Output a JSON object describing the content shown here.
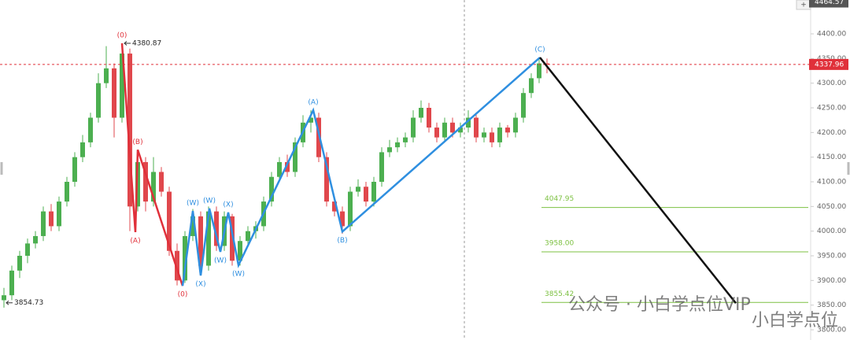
{
  "chart_data": {
    "type": "candlestick",
    "up_color": "#4caf50",
    "down_color": "#e0474c",
    "xlim": [
      -0.5,
      102.5
    ],
    "ylim": [
      3779.3,
      4468.6
    ],
    "yticks": [
      {
        "value": 4400,
        "label": "4400.00"
      },
      {
        "value": 4350,
        "label": "4350.00"
      },
      {
        "value": 4300,
        "label": "4300.00"
      },
      {
        "value": 4250,
        "label": "4250.00"
      },
      {
        "value": 4200,
        "label": "4200.00"
      },
      {
        "value": 4150,
        "label": "4150.00"
      },
      {
        "value": 4100,
        "label": "4100.00"
      },
      {
        "value": 4050,
        "label": "4050.00"
      },
      {
        "value": 4000,
        "label": "4000.00"
      },
      {
        "value": 3950,
        "label": "3950.00"
      },
      {
        "value": 3900,
        "label": "3900.00"
      },
      {
        "value": 3850,
        "label": "3850.00"
      },
      {
        "value": 3800,
        "label": "3800.00"
      }
    ],
    "candles": [
      [
        3860,
        3885,
        3845,
        3870
      ],
      [
        3870,
        3930,
        3860,
        3920
      ],
      [
        3920,
        3960,
        3905,
        3950
      ],
      [
        3950,
        3985,
        3935,
        3975
      ],
      [
        3975,
        4000,
        3965,
        3990
      ],
      [
        3990,
        4050,
        3980,
        4040
      ],
      [
        4040,
        4055,
        4000,
        4010
      ],
      [
        4010,
        4070,
        4000,
        4060
      ],
      [
        4060,
        4110,
        4050,
        4100
      ],
      [
        4100,
        4160,
        4090,
        4150
      ],
      [
        4150,
        4195,
        4140,
        4180
      ],
      [
        4180,
        4240,
        4170,
        4230
      ],
      [
        4230,
        4320,
        4220,
        4300
      ],
      [
        4300,
        4375,
        4290,
        4330
      ],
      [
        4330,
        4340,
        4190,
        4230
      ],
      [
        4230,
        4375,
        4220,
        4360
      ],
      [
        4360,
        4370,
        4000,
        4050
      ],
      [
        4050,
        4160,
        4040,
        4140
      ],
      [
        4140,
        4150,
        4040,
        4060
      ],
      [
        4060,
        4150,
        4050,
        4120
      ],
      [
        4120,
        4130,
        4070,
        4080
      ],
      [
        4080,
        4090,
        3950,
        3960
      ],
      [
        3960,
        3975,
        3890,
        3900
      ],
      [
        3900,
        4000,
        3895,
        3990
      ],
      [
        3990,
        4045,
        3980,
        4030
      ],
      [
        4030,
        4040,
        3915,
        3930
      ],
      [
        3930,
        4050,
        3920,
        4040
      ],
      [
        4040,
        4050,
        3960,
        3970
      ],
      [
        3970,
        4040,
        3960,
        4030
      ],
      [
        4030,
        4035,
        3930,
        3940
      ],
      [
        3940,
        3990,
        3930,
        3980
      ],
      [
        3980,
        4010,
        3970,
        4000
      ],
      [
        4000,
        4020,
        3985,
        4010
      ],
      [
        4010,
        4070,
        4000,
        4060
      ],
      [
        4060,
        4120,
        4050,
        4110
      ],
      [
        4110,
        4150,
        4100,
        4140
      ],
      [
        4140,
        4155,
        4110,
        4120
      ],
      [
        4120,
        4190,
        4110,
        4180
      ],
      [
        4180,
        4235,
        4170,
        4220
      ],
      [
        4220,
        4245,
        4200,
        4230
      ],
      [
        4230,
        4240,
        4140,
        4150
      ],
      [
        4150,
        4160,
        4050,
        4060
      ],
      [
        4060,
        4070,
        4030,
        4040
      ],
      [
        4040,
        4050,
        3995,
        4010
      ],
      [
        4010,
        4090,
        4000,
        4080
      ],
      [
        4080,
        4105,
        4070,
        4090
      ],
      [
        4090,
        4100,
        4050,
        4060
      ],
      [
        4060,
        4110,
        4050,
        4100
      ],
      [
        4100,
        4170,
        4090,
        4160
      ],
      [
        4160,
        4185,
        4150,
        4170
      ],
      [
        4170,
        4190,
        4160,
        4180
      ],
      [
        4180,
        4200,
        4170,
        4190
      ],
      [
        4190,
        4245,
        4180,
        4230
      ],
      [
        4230,
        4265,
        4220,
        4250
      ],
      [
        4250,
        4260,
        4200,
        4210
      ],
      [
        4210,
        4220,
        4180,
        4190
      ],
      [
        4190,
        4230,
        4180,
        4220
      ],
      [
        4220,
        4230,
        4190,
        4200
      ],
      [
        4200,
        4220,
        4190,
        4210
      ],
      [
        4210,
        4245,
        4200,
        4230
      ],
      [
        4230,
        4240,
        4180,
        4190
      ],
      [
        4190,
        4210,
        4180,
        4200
      ],
      [
        4200,
        4210,
        4170,
        4180
      ],
      [
        4180,
        4220,
        4170,
        4210
      ],
      [
        4210,
        4215,
        4190,
        4200
      ],
      [
        4200,
        4240,
        4190,
        4230
      ],
      [
        4230,
        4290,
        4220,
        4280
      ],
      [
        4280,
        4320,
        4270,
        4310
      ],
      [
        4310,
        4352,
        4300,
        4340
      ],
      [
        4340,
        4350,
        4320,
        4338
      ]
    ],
    "waves": [
      {
        "color": "#e0303a",
        "points": [
          {
            "x": 15,
            "y": 4380.87,
            "label": "(0)"
          },
          {
            "x": 16.7,
            "y": 3998,
            "label": "(A)"
          },
          {
            "x": 17,
            "y": 4165,
            "label": "(B)"
          },
          {
            "x": 22.7,
            "y": 3889,
            "label": "(0)"
          }
        ]
      },
      {
        "color": "#2f8fe0",
        "points": [
          {
            "x": 22.7,
            "y": 3889
          },
          {
            "x": 24,
            "y": 4041,
            "label": "(W)"
          },
          {
            "x": 25,
            "y": 3910,
            "label": "(X)"
          },
          {
            "x": 26.1,
            "y": 4046,
            "label": "(W)"
          },
          {
            "x": 27.5,
            "y": 3958,
            "label": "(W)"
          },
          {
            "x": 28.5,
            "y": 4038,
            "label": "(X)"
          },
          {
            "x": 29.8,
            "y": 3931,
            "label": "(W)"
          },
          {
            "x": 39.3,
            "y": 4245,
            "label": "(A)"
          },
          {
            "x": 43,
            "y": 3999,
            "label": "(B)"
          },
          {
            "x": 68.1,
            "y": 4352,
            "label": "(C)"
          }
        ]
      },
      {
        "color": "#111111",
        "points": [
          {
            "x": 68.1,
            "y": 4352
          },
          {
            "x": 93,
            "y": 3854
          }
        ]
      }
    ],
    "levels": [
      {
        "value": 4047.95,
        "color": "#7dc142"
      },
      {
        "value": 3958,
        "label": "3958.00",
        "color": "#7dc142"
      },
      {
        "value": 3855.42,
        "color": "#7dc142"
      }
    ],
    "level_x": 68.3,
    "markers": [
      {
        "x": 15,
        "value": 4380.87
      },
      {
        "x": 0,
        "value": 3854.73
      }
    ],
    "current_price": {
      "value": 4337.96,
      "color": "#e0303a"
    },
    "crosshair_price": 4464.57,
    "watermark": [
      "公众号 · 小白学点位VIP",
      "小白学点位"
    ]
  }
}
